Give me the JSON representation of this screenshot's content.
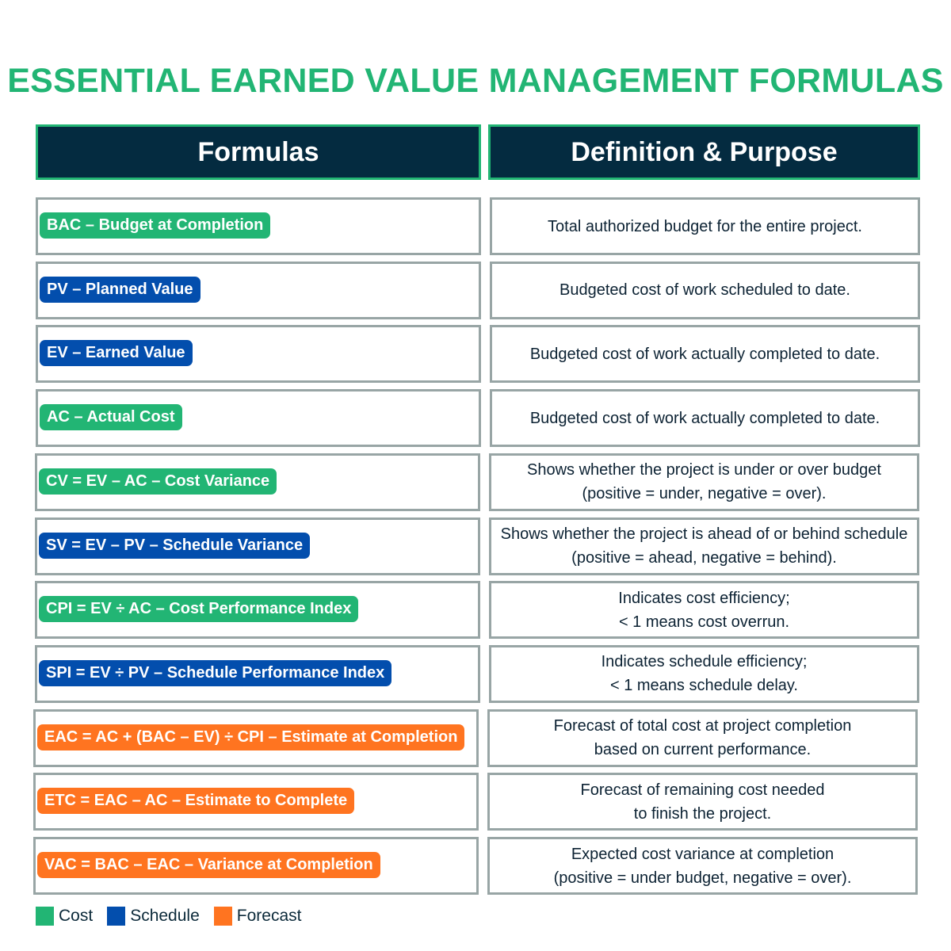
{
  "title": "ESSENTIAL EARNED VALUE MANAGEMENT FORMULAS",
  "headers": {
    "formulas": "Formulas",
    "definition": "Definition & Purpose"
  },
  "colors": {
    "cost": "#22b574",
    "schedule": "#034ead",
    "forecast": "#ff7420",
    "header": "#042b40",
    "border": "#98a5a5"
  },
  "rows": [
    {
      "formula": "BAC – Budget at Completion",
      "category": "cost",
      "definition": "Total authorized budget for the entire project."
    },
    {
      "formula": "PV – Planned Value",
      "category": "schedule",
      "definition": "Budgeted cost of work scheduled to date."
    },
    {
      "formula": "EV – Earned Value",
      "category": "schedule",
      "definition": "Budgeted cost of work actually completed to date."
    },
    {
      "formula": "AC – Actual Cost",
      "category": "cost",
      "definition": "Budgeted cost of work actually completed to date."
    },
    {
      "formula": "CV = EV – AC – Cost Variance",
      "category": "cost",
      "definition": "Shows whether the project is under or over budget (positive = under, negative = over)."
    },
    {
      "formula": "SV = EV – PV – Schedule Variance",
      "category": "schedule",
      "definition": "Shows whether the project is ahead of or behind schedule (positive = ahead, negative = behind)."
    },
    {
      "formula": "CPI = EV ÷ AC – Cost Performance Index",
      "category": "cost",
      "definition": "Indicates cost efficiency;\n< 1 means cost overrun."
    },
    {
      "formula": "SPI = EV ÷ PV – Schedule Performance Index",
      "category": "schedule",
      "definition": "Indicates schedule efficiency;\n< 1 means schedule delay."
    },
    {
      "formula": "EAC = AC + (BAC – EV) ÷ CPI – Estimate at Completion",
      "category": "forecast",
      "definition": "Forecast of total cost at project completion\nbased on current performance."
    },
    {
      "formula": "ETC = EAC – AC – Estimate to Complete",
      "category": "forecast",
      "definition": "Forecast of remaining cost needed\nto finish the project."
    },
    {
      "formula": "VAC = BAC – EAC – Variance at Completion",
      "category": "forecast",
      "definition": "Expected cost variance at completion\n(positive = under budget, negative = over)."
    }
  ],
  "legend": [
    {
      "label": "Cost",
      "category": "cost"
    },
    {
      "label": "Schedule",
      "category": "schedule"
    },
    {
      "label": "Forecast",
      "category": "forecast"
    }
  ]
}
